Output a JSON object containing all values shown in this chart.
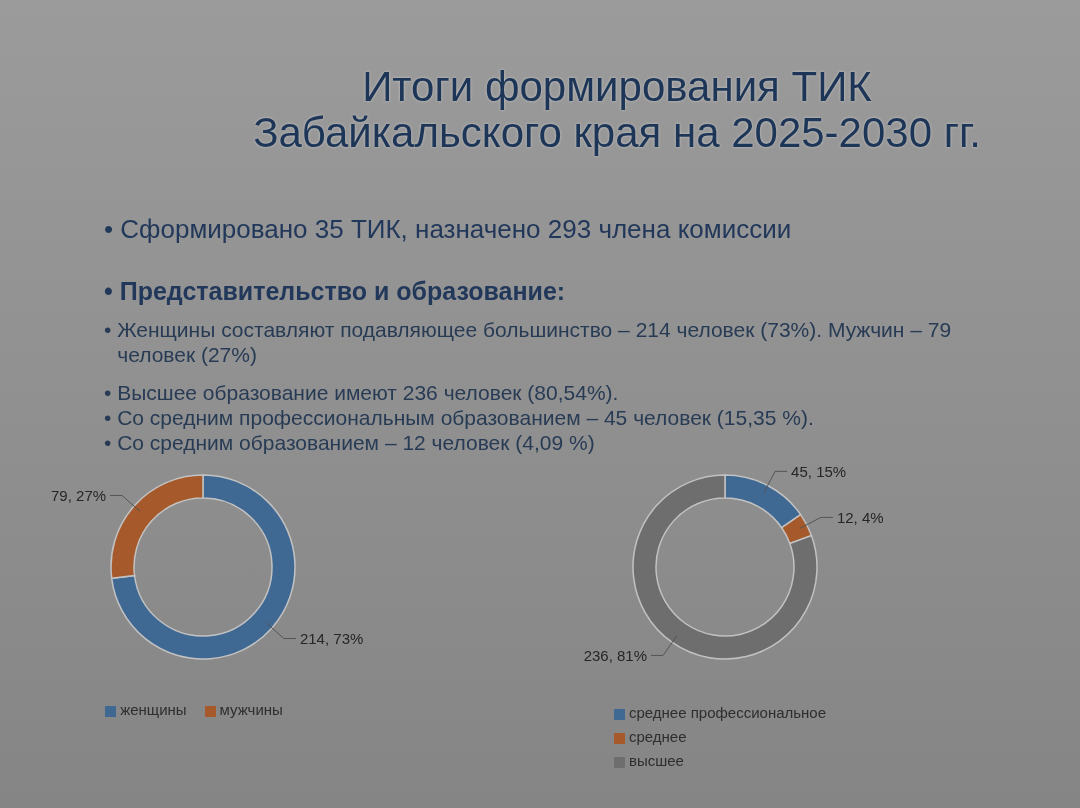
{
  "chart_data": [
    {
      "type": "other",
      "title": "Итоги формирования ТИК Забайкальского края на 2025-2030 гг.",
      "subtitle": "• Сформировано 35 ТИК, назначено 293 члена комиссии",
      "annotations": [
        "• Представительство и образование:",
        "• Женщины составляют подавляющее большинство – 214 человек (73%). Мужчин – 79 человек (27%)",
        "• Высшее образование имеют 236 человек (80,54%).",
        "• Со средним профессиональным образованием – 45 человек (15,35 %).",
        "• Со средним образованием – 12 человек (4,09 %)"
      ]
    },
    {
      "type": "donut",
      "categories": [
        "женщины",
        "мужчины"
      ],
      "values": [
        214,
        79
      ],
      "colors": [
        "#3f6893",
        "#a6592b"
      ],
      "value_labels": [
        "214, 73%",
        "79, 27%"
      ],
      "legend": "bottom"
    },
    {
      "type": "donut",
      "categories": [
        "среднее профессиональное",
        "среднее",
        "высшее"
      ],
      "values": [
        45,
        12,
        236
      ],
      "colors": [
        "#3f6893",
        "#a6592b",
        "#6e6e6e"
      ],
      "value_labels": [
        "45, 15%",
        "12, 4%",
        "236, 81%"
      ],
      "legend": "bottom"
    }
  ]
}
